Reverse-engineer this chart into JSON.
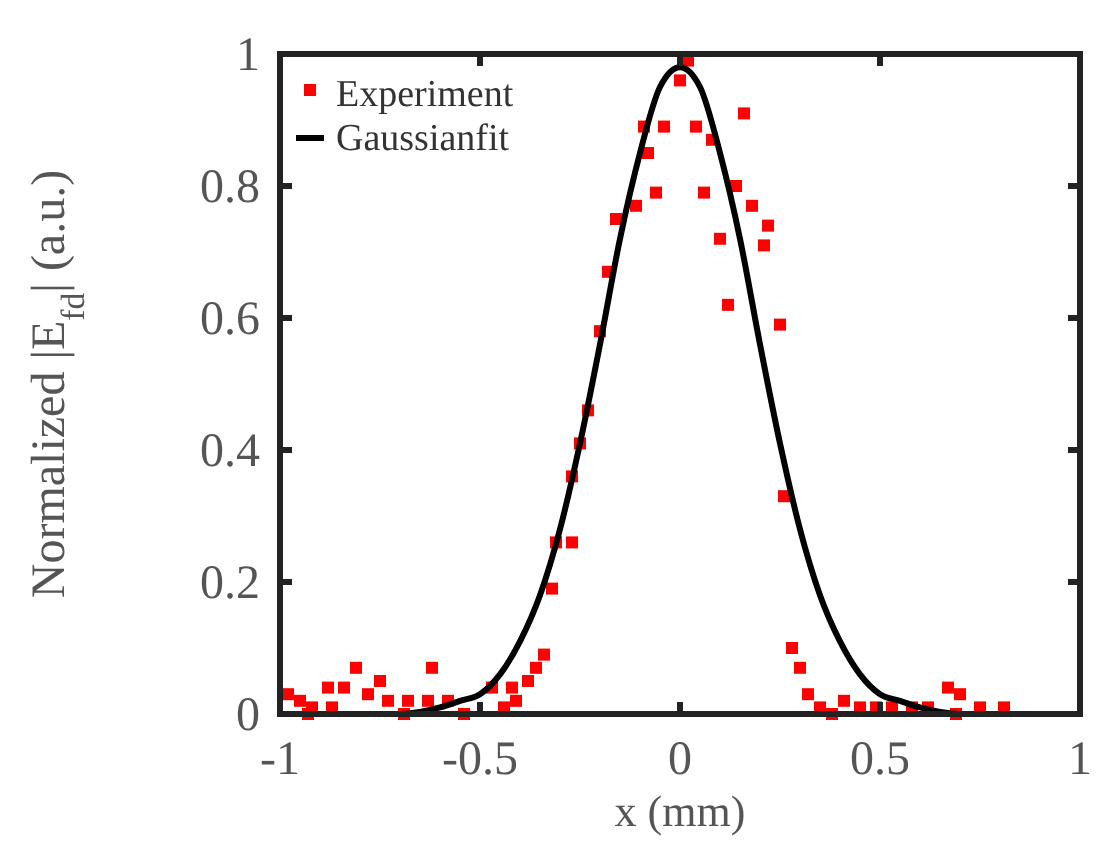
{
  "chart_data": {
    "type": "scatter",
    "xlabel": "x (mm)",
    "ylabel": "Normalized |E$_{fd}$| (a.u.)",
    "xlim": [
      -1,
      1
    ],
    "ylim": [
      0,
      1
    ],
    "xticks": [
      -1,
      -0.5,
      0,
      0.5,
      1
    ],
    "yticks": [
      0,
      0.2,
      0.4,
      0.6,
      0.8,
      1
    ],
    "legend": "top left",
    "grid": false,
    "series": [
      {
        "name": "Experiment",
        "marker": "square",
        "color": "#ff0000",
        "x": [
          0.02,
          0,
          -0.09,
          -0.04,
          0.04,
          0.16,
          -0.08,
          0.08,
          -0.06,
          0.06,
          0.14,
          -0.16,
          -0.11,
          0.18,
          0.22,
          0.1,
          0.21,
          -0.18,
          0.12,
          0.25,
          -0.2,
          -0.23,
          -0.25,
          -0.27,
          0.26,
          -0.31,
          -0.27,
          -0.32,
          0.28,
          0.3,
          -0.34,
          -0.36,
          -0.38,
          -0.42,
          -0.41,
          -0.44,
          -0.47,
          -0.54,
          -0.62,
          -0.75,
          -0.81,
          -0.84,
          -0.88,
          -0.78,
          -0.98,
          -0.95,
          -0.92,
          -0.87,
          -0.73,
          -0.68,
          -0.63,
          -0.58,
          -0.69,
          -0.93,
          0.32,
          0.35,
          0.38,
          0.41,
          0.45,
          0.49,
          0.53,
          0.58,
          0.62,
          0.67,
          0.7,
          0.75,
          0.81,
          0.69
        ],
        "values": [
          0.99,
          0.96,
          0.89,
          0.89,
          0.89,
          0.91,
          0.85,
          0.87,
          0.79,
          0.79,
          0.8,
          0.75,
          0.77,
          0.77,
          0.74,
          0.72,
          0.71,
          0.67,
          0.62,
          0.59,
          0.58,
          0.46,
          0.41,
          0.36,
          0.33,
          0.26,
          0.26,
          0.19,
          0.1,
          0.07,
          0.09,
          0.07,
          0.05,
          0.04,
          0.02,
          0.01,
          0.04,
          0,
          0.07,
          0.05,
          0.07,
          0.04,
          0.04,
          0.03,
          0.03,
          0.02,
          0.01,
          0.01,
          0.02,
          0.02,
          0.02,
          0.02,
          0,
          0,
          0.03,
          0.01,
          0,
          0.02,
          0.01,
          0.01,
          0.01,
          0.01,
          0.01,
          0.04,
          0.03,
          0.01,
          0.01,
          0
        ]
      },
      {
        "name": "Gaussianfit",
        "type": "line",
        "marker": "none",
        "line_style": "solid",
        "color": "#000000",
        "x": [
          -1,
          -0.8,
          -0.7,
          -0.6,
          -0.55,
          -0.5,
          -0.45,
          -0.4,
          -0.35,
          -0.3,
          -0.25,
          -0.2,
          -0.15,
          -0.1,
          -0.05,
          0,
          0.05,
          0.1,
          0.15,
          0.2,
          0.25,
          0.3,
          0.35,
          0.4,
          0.45,
          0.5,
          0.55,
          0.6,
          0.7,
          0.8,
          1
        ],
        "values": [
          0,
          0,
          0,
          0.01,
          0.02,
          0.03,
          0.06,
          0.11,
          0.18,
          0.28,
          0.41,
          0.56,
          0.72,
          0.85,
          0.95,
          0.98,
          0.95,
          0.85,
          0.72,
          0.56,
          0.41,
          0.28,
          0.18,
          0.11,
          0.06,
          0.03,
          0.02,
          0.01,
          0,
          0,
          0
        ]
      }
    ]
  }
}
